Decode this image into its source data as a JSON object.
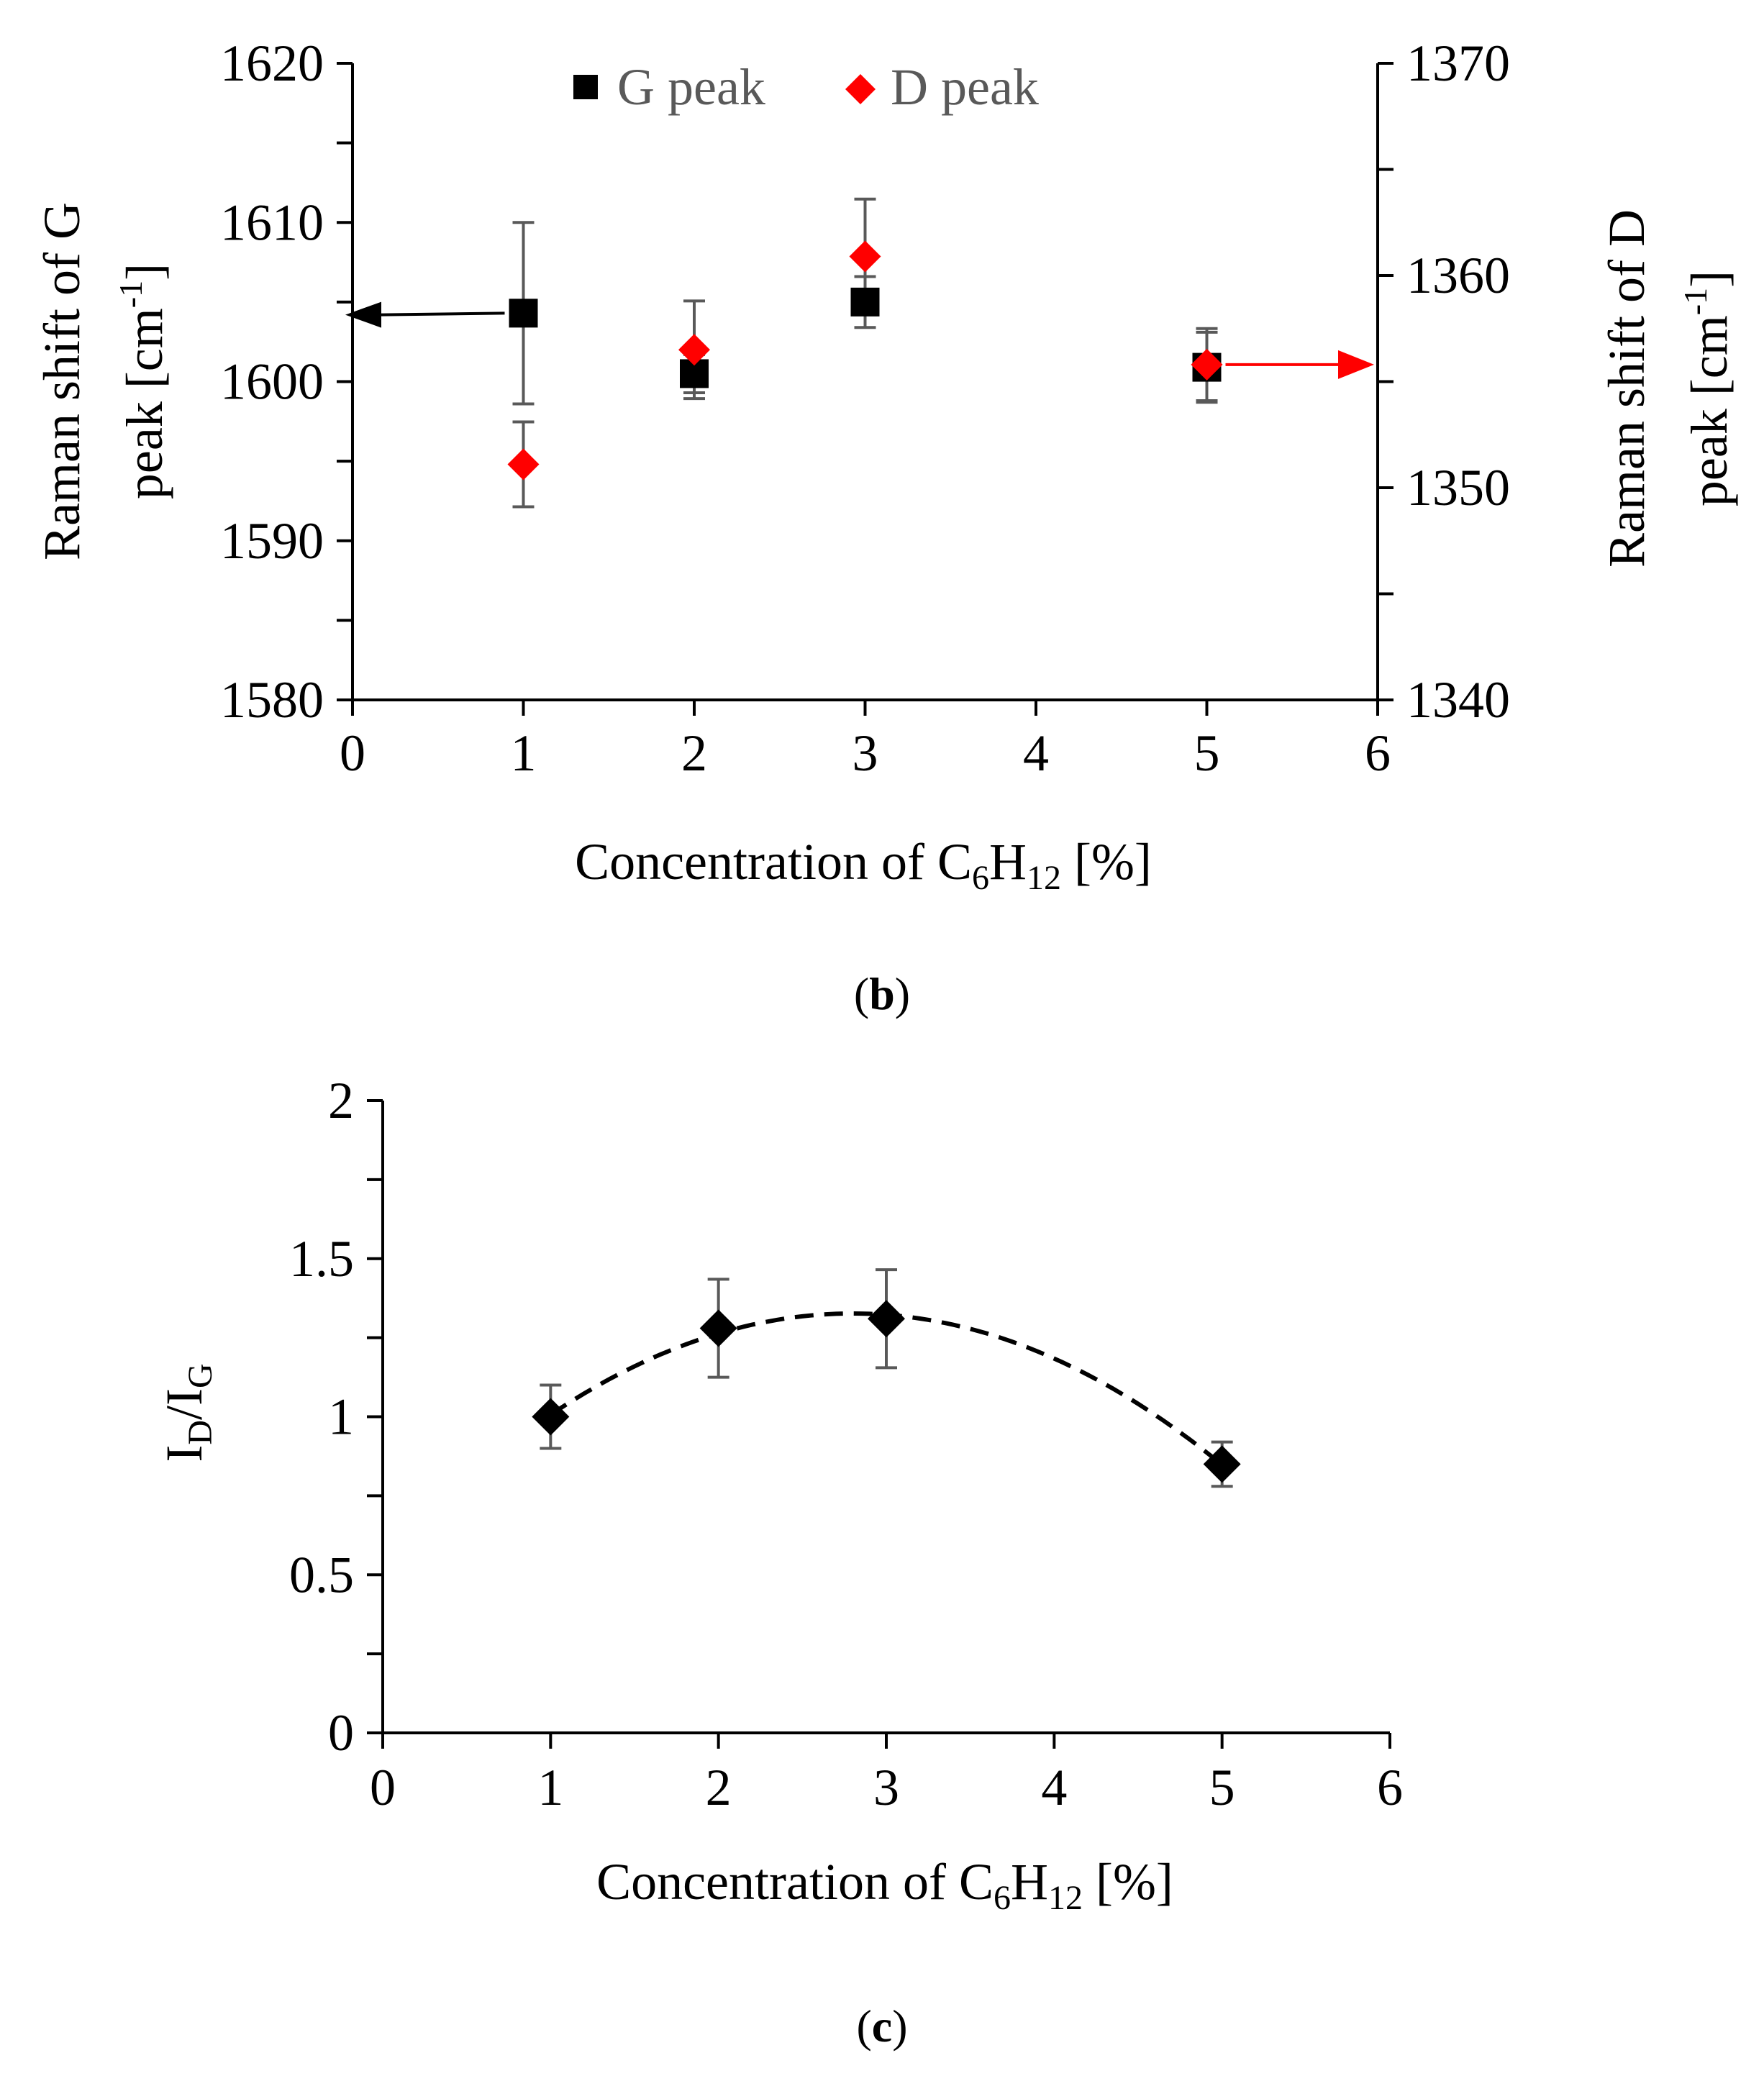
{
  "colors": {
    "axis": "#000000",
    "g_series": "#000000",
    "d_series": "#ff0000",
    "error_bar": "#595959",
    "legend_text": "#595959",
    "ratio_series": "#000000"
  },
  "chart_data": [
    {
      "id": "b",
      "type": "scatter",
      "caption": "b",
      "xlabel": "Concentration of C6H12 [%]",
      "xlabel_parts": {
        "main": "Concentration of C",
        "sub1": "6",
        "mid": "H",
        "sub2": "12",
        "end": " [%]"
      },
      "ylabel_left": "Raman shift of G peak [cm-1]",
      "ylabel_left_parts": {
        "line1": "Raman shift of G",
        "line2": "peak [cm",
        "sup": "-1",
        "end": "]"
      },
      "ylabel_right": "Raman shift of D peak [cm-1]",
      "ylabel_right_parts": {
        "line1": "Raman shift of D",
        "line2": "peak [cm",
        "sup": "-1",
        "end": "]"
      },
      "xlim": [
        0,
        6
      ],
      "xticks": [
        0,
        1,
        2,
        3,
        4,
        5,
        6
      ],
      "ylim_left": [
        1580,
        1620
      ],
      "yticks_left": [
        1580,
        1590,
        1600,
        1610,
        1620
      ],
      "ylim_right": [
        1340,
        1370
      ],
      "yticks_right": [
        1340,
        1350,
        1360,
        1370
      ],
      "legend": [
        "G peak",
        "D peak"
      ],
      "legend_position": "top-center",
      "series": [
        {
          "name": "G peak",
          "axis": "left",
          "marker": "square",
          "x": [
            1,
            2,
            3,
            5
          ],
          "y": [
            1604.3,
            1600.5,
            1605.0,
            1600.9
          ],
          "err": [
            5.7,
            1.2,
            1.6,
            2.2
          ]
        },
        {
          "name": "D peak",
          "axis": "right",
          "marker": "diamond",
          "x": [
            1,
            2,
            3,
            5
          ],
          "y": [
            1351.1,
            1356.5,
            1360.9,
            1355.8
          ],
          "err": [
            2.0,
            2.3,
            2.7,
            1.7
          ]
        }
      ],
      "annotations": [
        {
          "type": "arrow",
          "direction": "left",
          "series": "G peak",
          "indicates": "left axis"
        },
        {
          "type": "arrow",
          "direction": "right",
          "series": "D peak",
          "indicates": "right axis"
        }
      ]
    },
    {
      "id": "c",
      "type": "scatter",
      "caption": "c",
      "xlabel": "Concentration of C6H12 [%]",
      "xlabel_parts": {
        "main": "Concentration of C",
        "sub1": "6",
        "mid": "H",
        "sub2": "12",
        "end": " [%]"
      },
      "ylabel": "ID/IG",
      "ylabel_parts": {
        "a": "I",
        "sub_a": "D",
        "slash": "/I",
        "sub_b": "G"
      },
      "xlim": [
        0,
        6
      ],
      "xticks": [
        0,
        1,
        2,
        3,
        4,
        5,
        6
      ],
      "ylim": [
        0,
        2
      ],
      "yticks": [
        0,
        0.5,
        1,
        1.5,
        2
      ],
      "ytick_labels": [
        "0",
        "0.5",
        "1",
        "1.5",
        "2"
      ],
      "series": [
        {
          "name": "ID/IG",
          "marker": "diamond",
          "x": [
            1,
            2,
            3,
            5
          ],
          "y": [
            1.0,
            1.28,
            1.31,
            0.85
          ],
          "err": [
            0.1,
            0.155,
            0.155,
            0.07
          ]
        }
      ],
      "trendline": {
        "type": "polynomial",
        "order": 2,
        "style": "dashed",
        "x_range": [
          1,
          5
        ]
      }
    }
  ]
}
